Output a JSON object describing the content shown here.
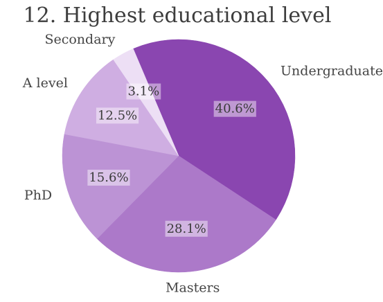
{
  "chart_data": {
    "type": "pie",
    "title": "12. Highest educational level",
    "slices": [
      {
        "label": "Undergraduate",
        "value": 40.6,
        "pct_label": "40.6%",
        "color": "#8a46b0"
      },
      {
        "label": "Masters",
        "value": 28.1,
        "pct_label": "28.1%",
        "color": "#ac79c9"
      },
      {
        "label": "PhD",
        "value": 15.6,
        "pct_label": "15.6%",
        "color": "#bc93d5"
      },
      {
        "label": "A level",
        "value": 12.5,
        "pct_label": "12.5%",
        "color": "#cfaee2"
      },
      {
        "label": "Secondary",
        "value": 3.1,
        "pct_label": "3.1%",
        "color": "#eddff5"
      }
    ]
  }
}
